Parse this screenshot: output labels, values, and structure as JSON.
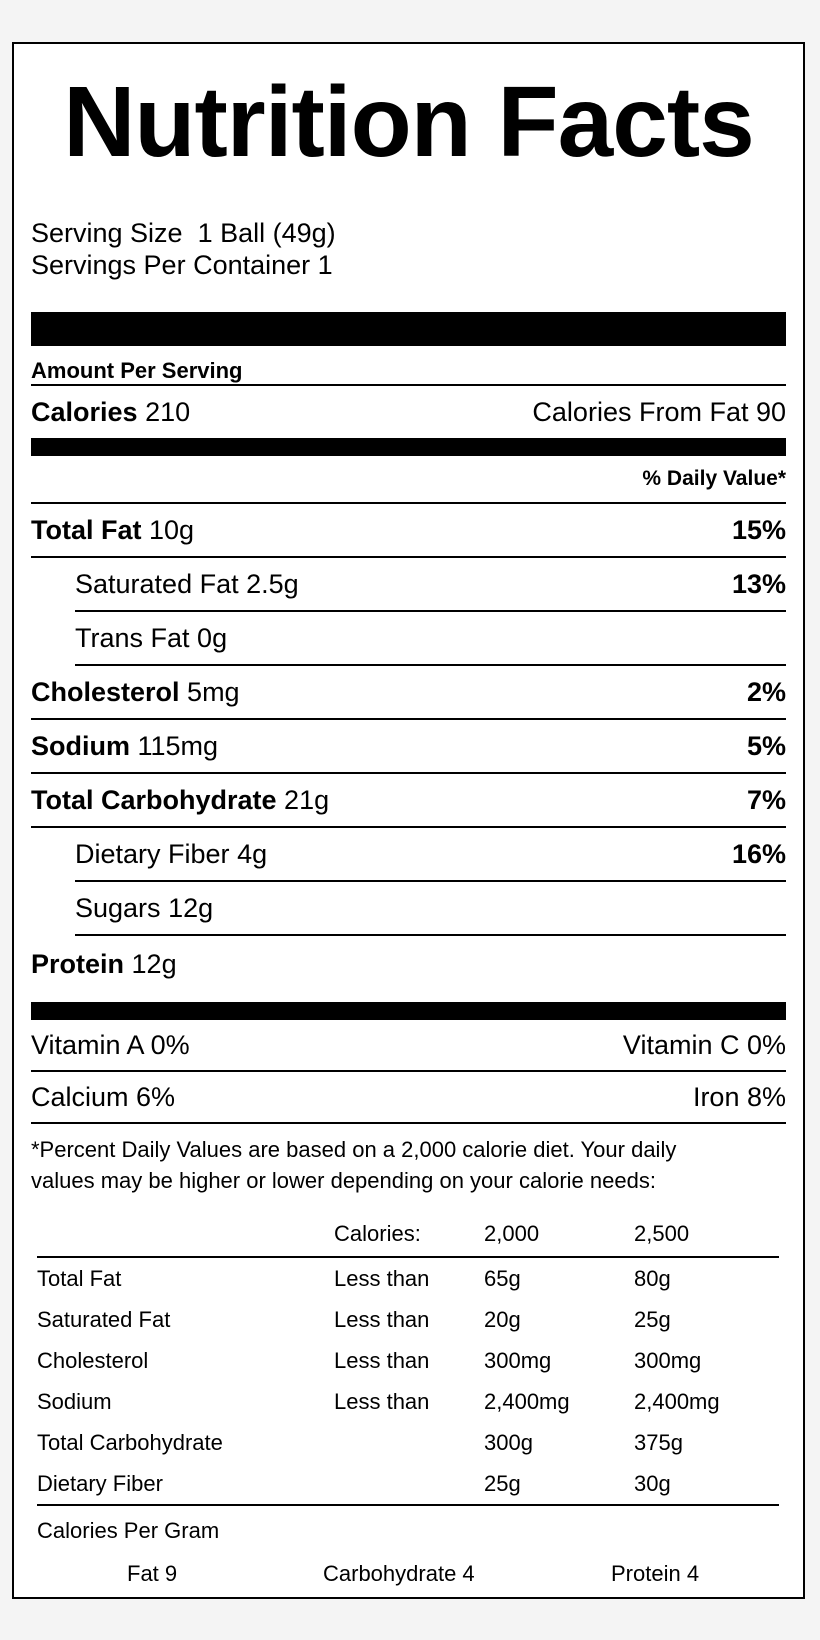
{
  "title": "Nutrition Facts",
  "serving_size_label": "Serving Size",
  "serving_size_value": "1 Ball (49g)",
  "servings_per_container": "Servings Per Container 1",
  "amount_per_serving": "Amount Per Serving",
  "calories_label": "Calories",
  "calories_value": "210",
  "calories_from_fat": "Calories From Fat 90",
  "daily_value_header": "% Daily Value*",
  "nutrients": [
    {
      "name": "Total Fat",
      "amount": "10g",
      "pct": "15%"
    },
    {
      "name": "Saturated Fat",
      "amount": "2.5g",
      "pct": "13%"
    },
    {
      "name": "Trans Fat",
      "amount": "0g",
      "pct": ""
    },
    {
      "name": "Cholesterol",
      "amount": "5mg",
      "pct": "2%"
    },
    {
      "name": "Sodium",
      "amount": "115mg",
      "pct": "5%"
    },
    {
      "name": "Total Carbohydrate",
      "amount": "21g",
      "pct": "7%"
    },
    {
      "name": "Dietary Fiber",
      "amount": "4g",
      "pct": "16%"
    },
    {
      "name": "Sugars",
      "amount": "12g",
      "pct": ""
    },
    {
      "name": "Protein",
      "amount": "12g",
      "pct": ""
    }
  ],
  "vitamins": {
    "vitamin_a": "Vitamin A 0%",
    "vitamin_c": "Vitamin C 0%",
    "calcium": "Calcium 6%",
    "iron": "Iron 8%"
  },
  "footnote_line1": "*Percent Daily Values are based on a 2,000 calorie diet. Your daily",
  "footnote_line2": "values may be higher or lower depending on your calorie needs:",
  "dv_table": {
    "header": [
      "",
      "Calories:",
      "2,000",
      "2,500"
    ],
    "rows": [
      [
        "Total Fat",
        "Less than",
        "65g",
        "80g"
      ],
      [
        "Saturated Fat",
        "Less than",
        "20g",
        "25g"
      ],
      [
        "Cholesterol",
        "Less than",
        "300mg",
        "300mg"
      ],
      [
        "Sodium",
        "Less than",
        "2,400mg",
        "2,400mg"
      ],
      [
        "Total Carbohydrate",
        "",
        "300g",
        "375g"
      ],
      [
        "Dietary Fiber",
        "",
        "25g",
        "30g"
      ]
    ]
  },
  "calories_per_gram": {
    "label": "Calories Per Gram",
    "fat": "Fat 9",
    "carbohydrate": "Carbohydrate 4",
    "protein": "Protein 4"
  }
}
